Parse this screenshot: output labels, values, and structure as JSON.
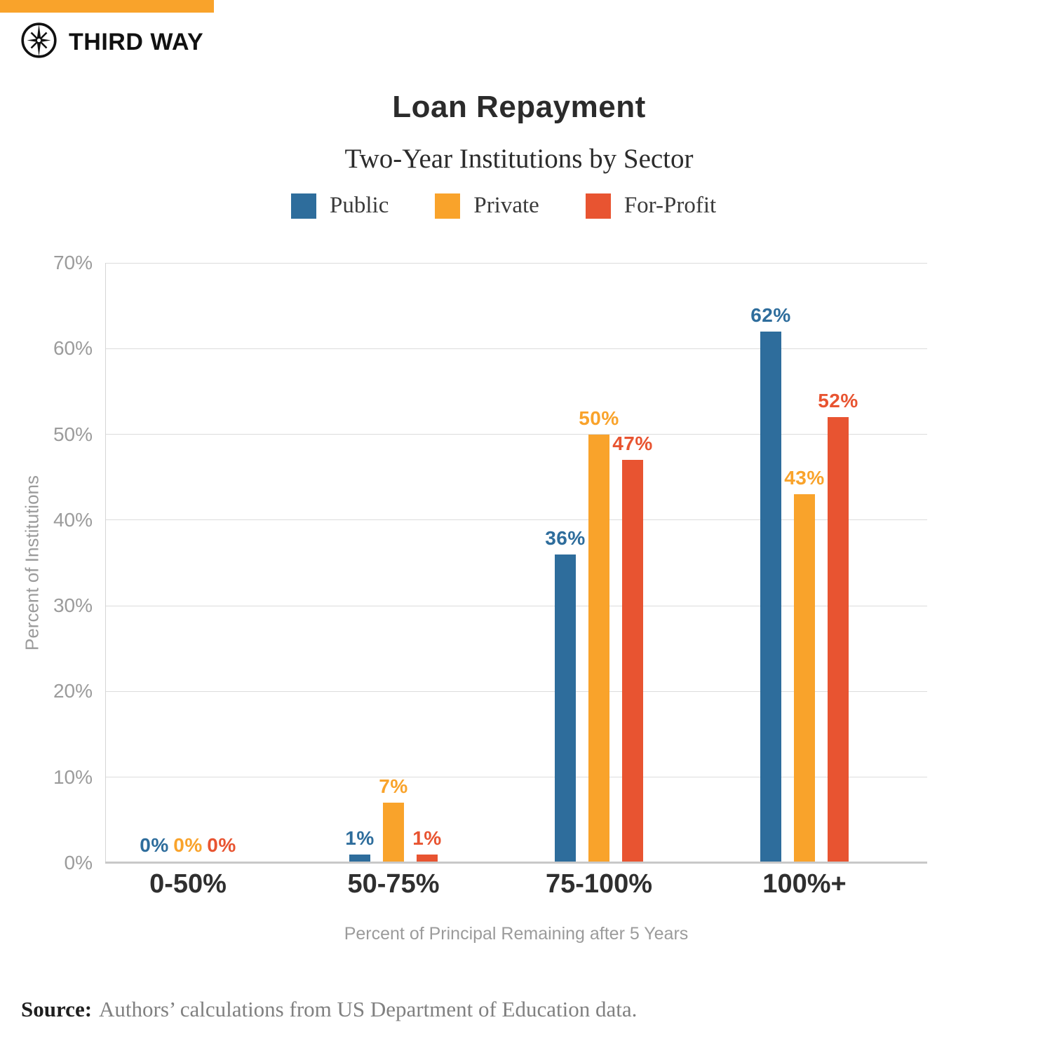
{
  "brand": {
    "logo_text": "THIRD WAY",
    "accent_bar_color": "#F9A32B"
  },
  "chart_data": {
    "type": "bar",
    "title": "Loan Repayment",
    "subtitle": "Two-Year Institutions by Sector",
    "categories": [
      "0-50%",
      "50-75%",
      "75-100%",
      "100%+"
    ],
    "series": [
      {
        "name": "Public",
        "color": "#2E6D9C",
        "values": [
          0,
          1,
          36,
          62
        ]
      },
      {
        "name": "Private",
        "color": "#F9A32B",
        "values": [
          0,
          7,
          50,
          43
        ]
      },
      {
        "name": "For-Profit",
        "color": "#E85431",
        "values": [
          0,
          1,
          47,
          52
        ]
      }
    ],
    "value_label_format": "{v}%",
    "xlabel": "Percent of Principal Remaining after 5 Years",
    "ylabel": "Percent of Institutions",
    "ylim": [
      0,
      70
    ],
    "ytick_step": 10,
    "ytick_labels": [
      "0%",
      "10%",
      "20%",
      "30%",
      "40%",
      "50%",
      "60%",
      "70%"
    ],
    "grid": true,
    "legend_position": "top"
  },
  "source": {
    "label": "Source:",
    "text": "Authors’ calculations from US Department of Education data."
  }
}
